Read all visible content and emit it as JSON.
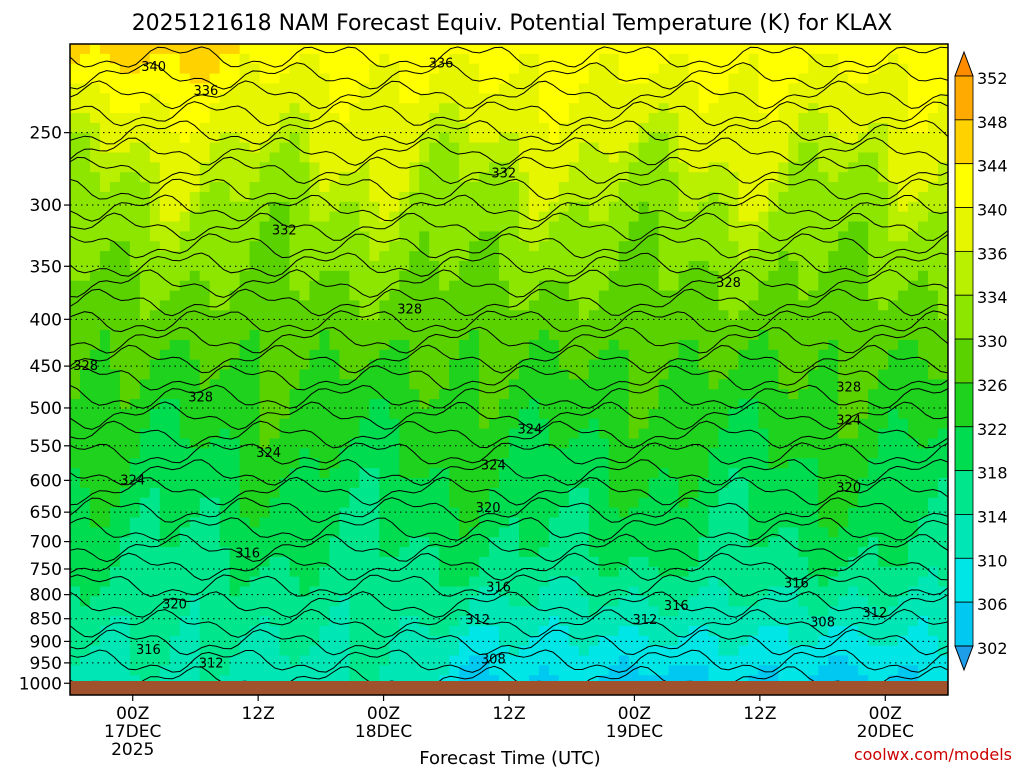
{
  "chart_data": {
    "type": "heatmap",
    "title": "2025121618 NAM Forecast Equiv. Potential Temperature (K) for KLAX",
    "xlabel": "Forecast Time (UTC)",
    "ylabel": "",
    "credit": "coolwx.com/models",
    "x_ticks": [
      {
        "hour": 0,
        "lines": [
          "00Z",
          "17DEC",
          "2025"
        ]
      },
      {
        "hour": 12,
        "lines": [
          "12Z"
        ]
      },
      {
        "hour": 24,
        "lines": [
          "00Z",
          "18DEC"
        ]
      },
      {
        "hour": 36,
        "lines": [
          "12Z"
        ]
      },
      {
        "hour": 48,
        "lines": [
          "00Z",
          "19DEC"
        ]
      },
      {
        "hour": 60,
        "lines": [
          "12Z"
        ]
      },
      {
        "hour": 72,
        "lines": [
          "00Z",
          "20DEC"
        ]
      }
    ],
    "xlim": [
      -6,
      78
    ],
    "y_ticks": [
      250,
      300,
      350,
      400,
      450,
      500,
      550,
      600,
      650,
      700,
      750,
      800,
      850,
      900,
      950,
      1000
    ],
    "ylim": [
      1030,
      200
    ],
    "y_scale": "log",
    "colorbar": {
      "levels": [
        302,
        306,
        310,
        314,
        318,
        322,
        326,
        330,
        334,
        336,
        340,
        344,
        348,
        352
      ],
      "colors": [
        "#1e9de8",
        "#00c8f0",
        "#00e6e6",
        "#00e6b4",
        "#00e68c",
        "#00dc50",
        "#1ed21e",
        "#5ad200",
        "#8ce600",
        "#b9ef00",
        "#e6f500",
        "#ffff00",
        "#ffd200",
        "#ffaa00",
        "#ff8c00"
      ]
    },
    "ground_color": "#a0522d",
    "contour_labels": [
      {
        "text": "340",
        "hour": 2,
        "p": 212
      },
      {
        "text": "336",
        "hour": 29.5,
        "p": 210
      },
      {
        "text": "336",
        "hour": 7,
        "p": 225
      },
      {
        "text": "332",
        "hour": 35.5,
        "p": 277
      },
      {
        "text": "332",
        "hour": 14.5,
        "p": 320
      },
      {
        "text": "328",
        "hour": 57,
        "p": 365
      },
      {
        "text": "328",
        "hour": 26.5,
        "p": 390
      },
      {
        "text": "328",
        "hour": -4.5,
        "p": 450
      },
      {
        "text": "328",
        "hour": 6.5,
        "p": 487
      },
      {
        "text": "328",
        "hour": 68.5,
        "p": 475
      },
      {
        "text": "324",
        "hour": 68.5,
        "p": 516
      },
      {
        "text": "324",
        "hour": 38,
        "p": 528
      },
      {
        "text": "324",
        "hour": 13,
        "p": 560
      },
      {
        "text": "324",
        "hour": 34.5,
        "p": 578
      },
      {
        "text": "324",
        "hour": 0,
        "p": 600
      },
      {
        "text": "320",
        "hour": 68.5,
        "p": 612
      },
      {
        "text": "320",
        "hour": 34,
        "p": 643
      },
      {
        "text": "316",
        "hour": 11,
        "p": 721
      },
      {
        "text": "316",
        "hour": 35,
        "p": 786
      },
      {
        "text": "316",
        "hour": 63.5,
        "p": 778
      },
      {
        "text": "316",
        "hour": 52,
        "p": 823
      },
      {
        "text": "320",
        "hour": 4,
        "p": 820
      },
      {
        "text": "312",
        "hour": 33,
        "p": 853
      },
      {
        "text": "312",
        "hour": 49,
        "p": 853
      },
      {
        "text": "312",
        "hour": 71,
        "p": 838
      },
      {
        "text": "308",
        "hour": 66,
        "p": 858
      },
      {
        "text": "308",
        "hour": 34.5,
        "p": 942
      },
      {
        "text": "316",
        "hour": 1.5,
        "p": 920
      },
      {
        "text": "312",
        "hour": 7.5,
        "p": 952
      }
    ]
  }
}
